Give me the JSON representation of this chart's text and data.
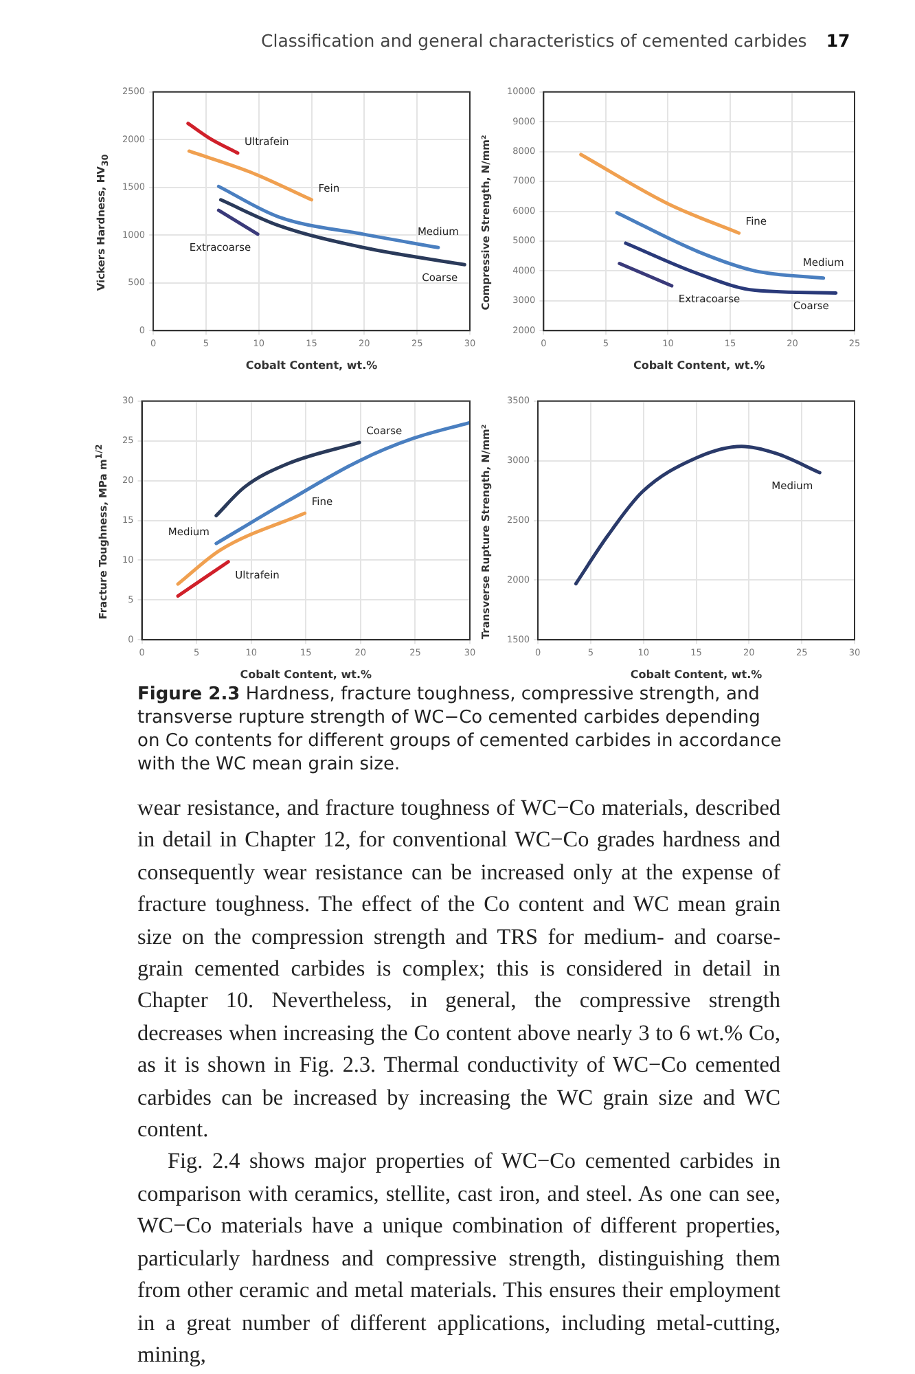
{
  "chart_data": [
    {
      "type": "line",
      "xlabel": "Cobalt Content, wt.%",
      "ylabel": "Vickers Hardness, HV$_{30}$",
      "xlim": [
        0,
        30
      ],
      "xticks": [
        0,
        5,
        10,
        15,
        20,
        25,
        30
      ],
      "ylim": [
        0,
        2500
      ],
      "yticks": [
        0,
        500,
        1000,
        1500,
        2000,
        2500
      ],
      "grid": true,
      "legend": false,
      "marker": "none",
      "line_style": "solid",
      "annotations": [
        "Classification and general characteristics of cemented carbides",
        "17"
      ],
      "series": [
        {
          "name": "Ultrafein",
          "color": "#d0202a",
          "x": [
            3.3,
            5.4,
            8.0
          ],
          "values": [
            2170,
            2010,
            1860
          ]
        },
        {
          "name": "Fein",
          "color": "#f0a050",
          "x": [
            3.4,
            9.2,
            15.0
          ],
          "values": [
            1880,
            1660,
            1370
          ]
        },
        {
          "name": "Medium",
          "color": "#4a7fc0",
          "x": [
            6.2,
            11.9,
            19.9,
            27.0
          ],
          "values": [
            1510,
            1190,
            1010,
            870
          ]
        },
        {
          "name": "Coarse",
          "color": "#2a3a5a",
          "x": [
            6.4,
            11.9,
            19.9,
            29.5
          ],
          "values": [
            1370,
            1100,
            870,
            690
          ]
        },
        {
          "name": "Extracoarse",
          "color": "#3a3a7a",
          "x": [
            6.2,
            9.9
          ],
          "values": [
            1260,
            1010
          ]
        }
      ]
    },
    {
      "type": "line",
      "xlabel": "Cobalt Content, wt.%",
      "ylabel": "Compressive Strength, N/mm²",
      "xlim": [
        0,
        25
      ],
      "xticks": [
        0,
        5,
        10,
        15,
        20,
        25
      ],
      "ylim": [
        2000,
        10000
      ],
      "yticks": [
        2000,
        3000,
        4000,
        5000,
        6000,
        7000,
        8000,
        9000,
        10000
      ],
      "grid": true,
      "legend": false,
      "marker": "none",
      "line_style": "solid",
      "series": [
        {
          "name": "Fine",
          "color": "#f0a050",
          "x": [
            3.0,
            10.1,
            15.7
          ],
          "values": [
            7900,
            6230,
            5270
          ]
        },
        {
          "name": "Medium",
          "color": "#4a7fc0",
          "x": [
            5.9,
            12.4,
            17.0,
            22.5
          ],
          "values": [
            5950,
            4650,
            4000,
            3760
          ]
        },
        {
          "name": "Coarse",
          "color": "#2a3a7a",
          "x": [
            6.6,
            12.4,
            17.0,
            23.5
          ],
          "values": [
            4930,
            3910,
            3350,
            3260
          ]
        },
        {
          "name": "Extracoarse",
          "color": "#3a3a7a",
          "x": [
            6.1,
            10.3
          ],
          "values": [
            4250,
            3500
          ]
        }
      ]
    },
    {
      "type": "line",
      "xlabel": "Cobalt Content, wt.%",
      "ylabel": "Fracture Toughness, MPa m$^{1/2}$",
      "xlim": [
        0,
        30
      ],
      "xticks": [
        0,
        5,
        10,
        15,
        20,
        25,
        30
      ],
      "ylim": [
        0,
        30
      ],
      "yticks": [
        0,
        5,
        10,
        15,
        20,
        25,
        30
      ],
      "grid": true,
      "legend": false,
      "marker": "none",
      "line_style": "solid",
      "series": [
        {
          "name": "Coarse",
          "color": "#2a3a5a",
          "x": [
            6.8,
            9.4,
            13.3,
            19.9
          ],
          "values": [
            15.6,
            19.2,
            22.1,
            24.8
          ]
        },
        {
          "name": "Medium",
          "color": "#4a7fc0",
          "x": [
            6.8,
            13.3,
            19.9,
            24.8,
            30.0
          ],
          "values": [
            12.1,
            17.4,
            22.5,
            25.3,
            27.3
          ]
        },
        {
          "name": "Fine",
          "color": "#f0a050",
          "x": [
            3.3,
            7.2,
            14.9
          ],
          "values": [
            7.0,
            11.3,
            15.9
          ]
        },
        {
          "name": "Ultrafein",
          "color": "#d0202a",
          "x": [
            3.3,
            7.9
          ],
          "values": [
            5.5,
            9.8
          ]
        }
      ]
    },
    {
      "type": "line",
      "xlabel": "Cobalt Content, wt.%",
      "ylabel": "Transverse Rupture Strength, N/mm²",
      "xlim": [
        0,
        30
      ],
      "xticks": [
        0,
        5,
        10,
        15,
        20,
        25,
        30
      ],
      "ylim": [
        1500,
        3500
      ],
      "yticks": [
        1500,
        2000,
        2500,
        3000,
        3500
      ],
      "grid": true,
      "legend": false,
      "marker": "none",
      "line_style": "solid",
      "annotations": [
        "Figure 2.3 Hardness, fracture toughness, compressive strength, and transverse rupture strength of WC−Co cemented carbides depending on Co contents for different groups of cemented carbides in accordance with the WC mean grain size.",
        "wear resistance, and fracture toughness of WC−Co materials, described in detail in Chapter 12, for conventional WC−Co grades hardness and consequently wear resistance can be increased only at the expense of fracture toughness. The effect of the Co content and WC mean grain size on the compression strength and TRS for medium- and coarse-grain cemented carbides is complex; this is considered in detail in Chapter 10. Nevertheless, in general, the compressive strength decreases when increasing the Co content above nearly 3 to 6 wt.% Co, as it is shown in Fig. 2.3. Thermal conductivity of WC−Co cemented carbides can be increased by increasing the WC grain size and WC content.",
        "Fig. 2.4 shows major properties of WC−Co cemented carbides in comparison with ceramics, stellite, cast iron, and steel. As one can see, WC−Co materials have a unique combination of different properties, particularly hardness and compressive strength, distinguishing them from other ceramic and metal materials. This ensures their employment in a great number of different applications, including metal-cutting, mining,"
      ],
      "series": [
        {
          "name": "Medium",
          "color": "#2a3a6a",
          "x": [
            3.6,
            6.6,
            9.9,
            14.9,
            19.3,
            22.6,
            26.7
          ],
          "values": [
            1970,
            2370,
            2740,
            3020,
            3120,
            3060,
            2900
          ]
        }
      ]
    }
  ]
}
